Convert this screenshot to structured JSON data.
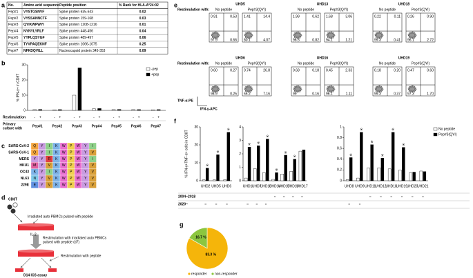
{
  "panel_labels": [
    "a",
    "b",
    "c",
    "d",
    "e",
    "f",
    "g"
  ],
  "table": {
    "columns": [
      "No.",
      "Amino acid sequence",
      "Peptide position",
      "% Rank for HLA-A*24:02"
    ],
    "rows": [
      [
        "Pep#1",
        "VYSTGSNVF",
        "Spike protein 635-643",
        0.02
      ],
      [
        "Pep#2",
        "VYSSANNCTF",
        "Spike protein 159-168",
        0.03
      ],
      [
        "Pep#3",
        "QYIKWPWYI",
        "Spike protein 1208-1216",
        0.01
      ],
      [
        "Pep#4",
        "NYNYLYRLF",
        "Spike protein 448-456",
        0.04
      ],
      [
        "Pep#5",
        "YYPLQSYGF",
        "Spike protein 489-497",
        0.06
      ],
      [
        "Pep#6",
        "TYVPAQEKNF",
        "Spike protein 1066-1075",
        0.25
      ],
      [
        "Pep#7",
        "NFKDQVILL",
        "Nucleocapsid protein 345-353",
        0.09
      ]
    ]
  },
  "chart_data": [
    {
      "type": "bar",
      "ylabel": "% IFN-γ+ in CD8T",
      "categories": [
        "Pep#1",
        "Pep#2",
        "Pep#3",
        "Pep#4",
        "Pep#5",
        "Pep#6",
        "Pep#7"
      ],
      "series": [
        {
          "name": "-pep",
          "color": "#ffffff",
          "values": [
            0.5,
            0.4,
            10,
            1,
            0.5,
            0.5,
            0.4
          ]
        },
        {
          "name": "+pep",
          "color": "#000000",
          "values": [
            0.6,
            0.5,
            28,
            1.2,
            0.6,
            0.5,
            0.5
          ]
        }
      ],
      "ylim": [
        0,
        30
      ],
      "yticks": [
        0,
        10,
        20,
        30
      ],
      "row_labels": [
        "Restimulation",
        [
          "Primary",
          "culture with"
        ]
      ],
      "restim_marks": [
        "-",
        "+"
      ]
    },
    {
      "type": "grouped-bar-panels",
      "ylabel": "% IFN-γ+TNF-α+ cells in CD8T",
      "series": [
        {
          "name": "No peptide",
          "color": "#ffffff"
        },
        {
          "name": "Pep#3(QYI)",
          "color": "#000000"
        }
      ],
      "star": "※",
      "circle": "○",
      "row_labels": [
        "2004~2018",
        "2020~"
      ],
      "panels": [
        {
          "categories": [
            "UHD2",
            "UHD5",
            "UHD6"
          ],
          "values": [
            [
              0.5,
              0.5,
              0.6
            ],
            [
              7,
              14.5,
              27
            ]
          ],
          "significant": [
            true,
            true,
            true
          ],
          "ylim": [
            0,
            30
          ],
          "yticks": [
            0,
            10,
            20,
            30
          ],
          "rows": [
            [
              false,
              false,
              false
            ],
            [
              true,
              true,
              true
            ]
          ]
        },
        {
          "categories": [
            "UHD1",
            "UHD7",
            "UHD13",
            "UHD14",
            "UHD15",
            "UHD16",
            "UHD17"
          ],
          "values": [
            [
              0.2,
              0.9,
              0.6,
              0.1,
              0.5,
              0.7,
              2.2
            ],
            [
              2.5,
              2.6,
              3.1,
              0.6,
              1.9,
              1.6,
              2.3
            ]
          ],
          "significant": [
            true,
            true,
            true,
            true,
            true,
            true,
            false
          ],
          "ylim": [
            0,
            4
          ],
          "yticks": [
            0,
            1,
            2,
            3,
            4
          ],
          "rows": [
            [
              false,
              false,
              false,
              true,
              true,
              true,
              true
            ],
            [
              true,
              true,
              true,
              false,
              false,
              false,
              false
            ]
          ]
        },
        {
          "categories": [
            "UHD8",
            "UHD9",
            "UHD11",
            "UHD12",
            "UHD18",
            "UHD19",
            "UHD20",
            "UHD21"
          ],
          "values": [
            [
              0.02,
              0.05,
              0.24,
              0.24,
              0.22,
              0.2,
              0.15,
              0.18
            ],
            [
              0.43,
              0.9,
              0.67,
              0.42,
              0.9,
              0.62,
              0.16,
              0.17
            ]
          ],
          "significant": [
            true,
            true,
            true,
            true,
            true,
            true,
            false,
            false
          ],
          "ylim": [
            0,
            1
          ],
          "yticks": [
            0,
            0.2,
            0.4,
            0.6,
            0.8,
            1
          ],
          "rows": [
            [
              false,
              false,
              true,
              true,
              true,
              true,
              true,
              true
            ],
            [
              true,
              true,
              false,
              false,
              false,
              false,
              false,
              false
            ]
          ]
        }
      ]
    },
    {
      "type": "pie",
      "categories": [
        "responder",
        "non-responder"
      ],
      "values": [
        83.3,
        16.7
      ],
      "value_labels": [
        "83.3 %",
        "16.7 %"
      ],
      "colors": [
        "#f5b50a",
        "#8cc63f"
      ]
    }
  ],
  "alignment": {
    "colors": {
      "Q": "#f4a640",
      "Y": "#c99be0",
      "I": "#8fd18a",
      "K": "#7fb3e8",
      "W": "#e86fd0",
      "P": "#f0d050",
      "V": "#d9a03a",
      "N": "#7fc8e8",
      "M": "#e060a0",
      "R": "#e04040",
      "E": "#6090e0"
    },
    "rows": [
      {
        "name": "SARS-CoV-2",
        "seq": [
          "Q",
          "Y",
          "I",
          "K",
          "W",
          "P",
          "W",
          "Y",
          "I"
        ]
      },
      {
        "name": "SARS-CoV-1",
        "seq": [
          "Q",
          "Y",
          "I",
          "K",
          "W",
          "P",
          "W",
          "Y",
          "V"
        ]
      },
      {
        "name": "MERS",
        "seq": [
          "Y",
          "Y",
          "R",
          "K",
          "W",
          "P",
          "W",
          "Y",
          "I"
        ]
      },
      {
        "name": "HKU1",
        "seq": [
          "M",
          "Y",
          "V",
          "K",
          "W",
          "P",
          "W",
          "Y",
          "V"
        ]
      },
      {
        "name": "OC43",
        "seq": [
          "K",
          "Y",
          "I",
          "K",
          "W",
          "P",
          "W",
          "Y",
          "V"
        ]
      },
      {
        "name": "NL63",
        "seq": [
          "N",
          "Y",
          "V",
          "K",
          "W",
          "P",
          "W",
          "Y",
          "V"
        ]
      },
      {
        "name": "229E",
        "seq": [
          "E",
          "Y",
          "V",
          "K",
          "W",
          "P",
          "W",
          "Y",
          "V"
        ]
      }
    ]
  },
  "diagram": {
    "cell": "CD8T",
    "step1": "Irradiated auto PBMCs pulsed with peptide",
    "cytokine": "IL-2",
    "step2": [
      "Restimulation with irradiated auto PBMCs",
      "pulsed with peptide (d7)"
    ],
    "step3": "Restimulation with peptide",
    "assay": "D14 ICS assay"
  },
  "flow": {
    "restim_label": "Restimulation with:",
    "conditions": [
      "No peptide",
      "Pep#3(QYI)"
    ],
    "ylabel": "TNF-α-PE",
    "xlabel": "IFN-γ-APC",
    "donors": [
      {
        "name": "UHD5",
        "plots": [
          [
            0.91,
            0.53,
            97.9,
            0.66
          ],
          [
            1.41,
            14.4,
            80.1,
            4.07
          ]
        ]
      },
      {
        "name": "UHD13",
        "plots": [
          [
            1.99,
            0.62,
            96.5,
            0.82
          ],
          [
            1.68,
            3.06,
            94.1,
            1.21
          ]
        ]
      },
      {
        "name": "UHD18",
        "plots": [
          [
            0.22,
            0.11,
            99.3,
            0.41
          ],
          [
            0.26,
            {
              "value": 0.9,
              "label": "0.90"
            },
            96.1,
            2.72
          ]
        ]
      },
      {
        "name": "UHD6",
        "plots": [
          [
            {
              "value": 0.6,
              "label": "0.60"
            },
            0.27,
            98.9,
            0.25
          ],
          [
            0.74,
            26.8,
            65.2,
            7.16
          ]
        ]
      },
      {
        "name": "UHD16",
        "plots": [
          [
            0.68,
            0.18,
            99.0,
            0.16
          ],
          [
            0.45,
            2.33,
            96.1,
            1.11
          ]
        ]
      },
      {
        "name": "UHD19",
        "plots": [
          [
            0.18,
            {
              "value": 0.2,
              "label": "0.20"
            },
            99.3,
            0.37
          ],
          [
            0.47,
            {
              "value": 0.6,
              "label": "0.60"
            },
            97.3,
            {
              "value": 1.7,
              "label": "1.70"
            }
          ]
        ]
      }
    ]
  }
}
